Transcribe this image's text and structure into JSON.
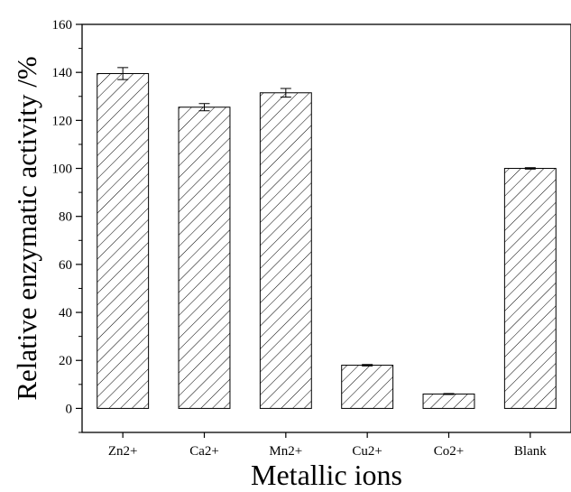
{
  "chart_data": {
    "type": "bar",
    "categories": [
      "Zn2+",
      "Ca2+",
      "Mn2+",
      "Cu2+",
      "Co2+",
      "Blank"
    ],
    "values": [
      139.5,
      125.5,
      131.5,
      18,
      6,
      100
    ],
    "errors": [
      2.5,
      1.5,
      1.8,
      0.3,
      0.2,
      0.3
    ],
    "xlabel": "Metallic ions",
    "ylabel": "Relative enzymatic activity /%",
    "ylim": [
      -10,
      160
    ],
    "yticks": [
      0,
      20,
      40,
      60,
      80,
      100,
      120,
      140,
      160
    ],
    "grid": false,
    "legend": "none",
    "bar_fill": "diagonal-hatch",
    "colors": {
      "bar_stroke": "#000000",
      "hatch": "#000000",
      "background": "#ffffff"
    }
  }
}
